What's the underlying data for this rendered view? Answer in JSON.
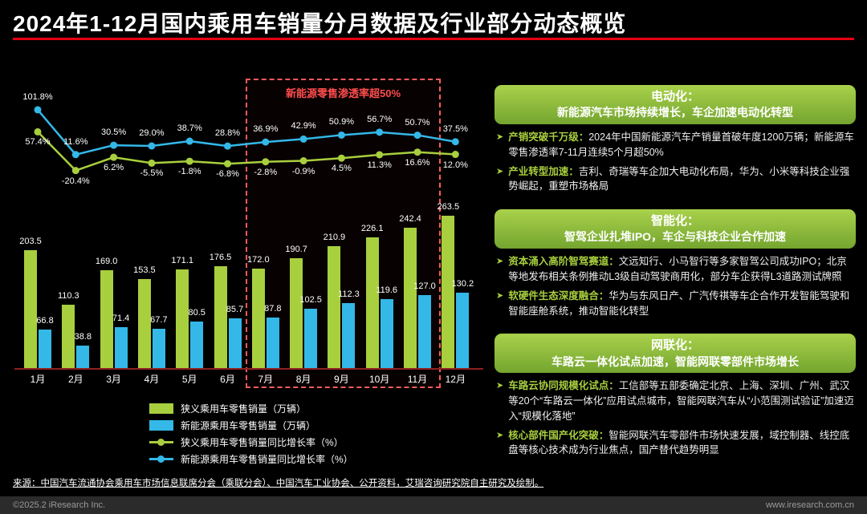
{
  "title": "2024年1-12月国内乘用车销量分月数据及行业部分动态概览",
  "bullet_icon": "➤",
  "chart_data": {
    "type": "bar",
    "subtype": "grouped bars with two year-over-year growth-rate lines",
    "categories": [
      "1月",
      "2月",
      "3月",
      "4月",
      "5月",
      "6月",
      "7月",
      "8月",
      "9月",
      "10月",
      "11月",
      "12月"
    ],
    "series": [
      {
        "name": "狭义乘用车零售销量（万辆）",
        "type": "bar",
        "color": "#a8cf3e",
        "values": [
          203.5,
          110.3,
          169.0,
          153.5,
          171.1,
          176.5,
          172.0,
          190.7,
          210.9,
          226.1,
          242.4,
          263.5
        ]
      },
      {
        "name": "新能源乘用车零售销量（万辆）",
        "type": "bar",
        "color": "#33b8e8",
        "values": [
          66.8,
          38.8,
          71.4,
          67.7,
          80.5,
          85.7,
          87.8,
          102.5,
          112.3,
          119.6,
          127.0,
          130.2
        ]
      },
      {
        "name": "狭义乘用车零售销量同比增长率（%）",
        "type": "line",
        "color": "#a8cf3e",
        "values": [
          57.4,
          -20.4,
          6.2,
          -5.5,
          -1.8,
          -6.8,
          -2.8,
          -0.9,
          4.5,
          11.3,
          16.6,
          12.0
        ]
      },
      {
        "name": "新能源乘用车零售销量同比增长率（%）",
        "type": "line",
        "color": "#33b8e8",
        "values": [
          101.8,
          11.6,
          30.5,
          29.0,
          38.7,
          28.8,
          36.9,
          42.9,
          50.9,
          56.7,
          50.7,
          37.5
        ]
      }
    ],
    "annotation": {
      "label": "新能源零售渗透率超50%",
      "month_range": [
        "7月",
        "11月"
      ]
    },
    "legend_position": "bottom-left",
    "grid": false
  },
  "panels": [
    {
      "title_line1": "电动化：",
      "title_line2": "新能源汽车市场持续增长，车企加速电动化转型",
      "bullets": [
        {
          "keyword": "产销突破千万级：",
          "text": "2024年中国新能源汽车产销量首破年度1200万辆；新能源车零售渗透率7-11月连续5个月超50%"
        },
        {
          "keyword": "产业转型加速：",
          "text": "吉利、奇瑞等车企加大电动化布局，华为、小米等科技企业强势崛起，重塑市场格局"
        }
      ]
    },
    {
      "title_line1": "智能化：",
      "title_line2": "智驾企业扎堆IPO，车企与科技企业合作加速",
      "bullets": [
        {
          "keyword": "资本涌入高阶智驾赛道：",
          "text": "文远知行、小马智行等多家智驾公司成功IPO；北京等地发布相关条例推动L3级自动驾驶商用化，部分车企获得L3道路测试牌照"
        },
        {
          "keyword": "软硬件生态深度融合：",
          "text": "华为与东风日产、广汽传祺等车企合作开发智能驾驶和智能座舱系统，推动智能化转型"
        }
      ]
    },
    {
      "title_line1": "网联化：",
      "title_line2": "车路云一体化试点加速，智能网联零部件市场增长",
      "bullets": [
        {
          "keyword": "车路云协同规模化试点：",
          "text": "工信部等五部委确定北京、上海、深圳、广州、武汉等20个“车路云一体化”应用试点城市，智能网联汽车从“小范围测试验证”加速迈入“规模化落地”"
        },
        {
          "keyword": "核心部件国产化突破：",
          "text": "智能网联汽车零部件市场快速发展，域控制器、线控底盘等核心技术成为行业焦点，国产替代趋势明显"
        }
      ]
    }
  ],
  "source": "来源：中国汽车流通协会乘用车市场信息联席分会（乘联分会）、中国汽车工业协会、公开资料，艾瑞咨询研究院自主研究及绘制。",
  "footer": {
    "left": "©2025.2 iResearch Inc.",
    "right": "www.iresearch.com.cn"
  },
  "colors": {
    "green": "#a8cf3e",
    "blue": "#33b8e8",
    "red_accent": "#e60012",
    "highlight_red": "#ff5a5a",
    "background": "#000000"
  }
}
